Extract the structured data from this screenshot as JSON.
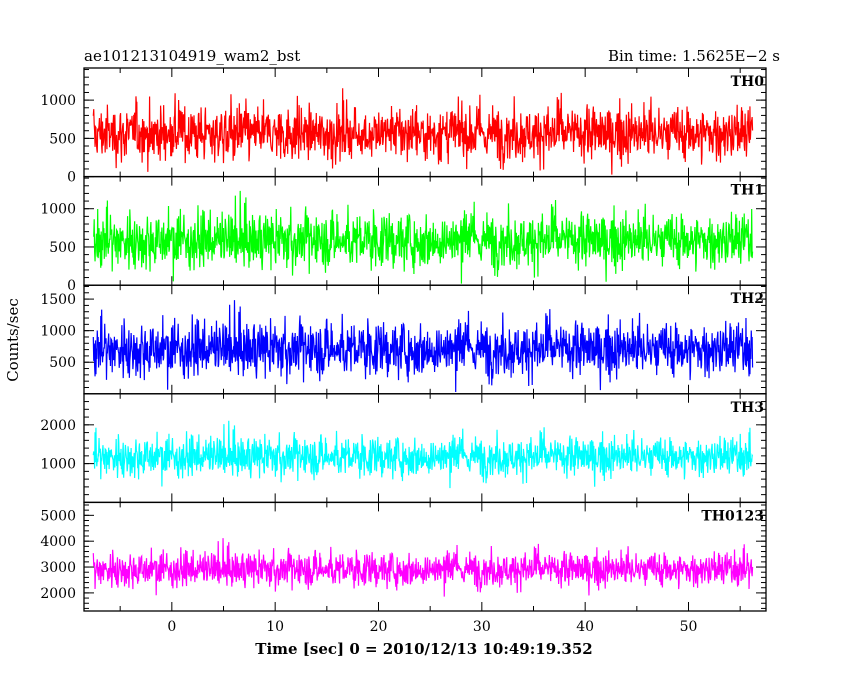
{
  "chart_data": {
    "type": "line",
    "title_left": "ae101213104919_wam2_bst",
    "title_right": "Bin time: 1.5625E−2 s",
    "ylabel": "Counts/sec",
    "xlabel": "Time [sec] 0 = 2010/12/13 10:49:19.352",
    "xlim": [
      -8.5,
      57.5
    ],
    "x_range": [
      -7.6,
      56.2
    ],
    "xticks": [
      0,
      10,
      20,
      30,
      40,
      50
    ],
    "xtick_labels": [
      "0",
      "10",
      "20",
      "30",
      "40",
      "50"
    ],
    "panels": [
      {
        "name": "TH0",
        "color": "#ff0000",
        "ylim": [
          0,
          1420
        ],
        "yticks": [
          0,
          500,
          1000
        ],
        "ytick_labels": [
          "0",
          "500",
          "1000"
        ],
        "mean": 560,
        "spread": 300,
        "min": 0,
        "max": 1420
      },
      {
        "name": "TH1",
        "color": "#00ff00",
        "ylim": [
          0,
          1420
        ],
        "yticks": [
          0,
          500,
          1000
        ],
        "ytick_labels": [
          "0",
          "500",
          "1000"
        ],
        "mean": 580,
        "spread": 300,
        "min": 0,
        "max": 1420
      },
      {
        "name": "TH2",
        "color": "#0000ff",
        "ylim": [
          0,
          1720
        ],
        "yticks": [
          500,
          1000,
          1500
        ],
        "ytick_labels": [
          "500",
          "1000",
          "1500"
        ],
        "mean": 700,
        "spread": 360,
        "min": 0,
        "max": 1720
      },
      {
        "name": "TH3",
        "color": "#00ffff",
        "ylim": [
          0,
          2800
        ],
        "yticks": [
          1000,
          2000
        ],
        "ytick_labels": [
          "1000",
          "2000"
        ],
        "mean": 1170,
        "spread": 430,
        "min": 0,
        "max": 2800
      },
      {
        "name": "TH0123",
        "color": "#ff00ff",
        "ylim": [
          1300,
          5500
        ],
        "yticks": [
          2000,
          3000,
          4000,
          5000
        ],
        "ytick_labels": [
          "2000",
          "3000",
          "4000",
          "5000"
        ],
        "mean": 2900,
        "spread": 560,
        "min": 1300,
        "max": 5500
      }
    ]
  }
}
